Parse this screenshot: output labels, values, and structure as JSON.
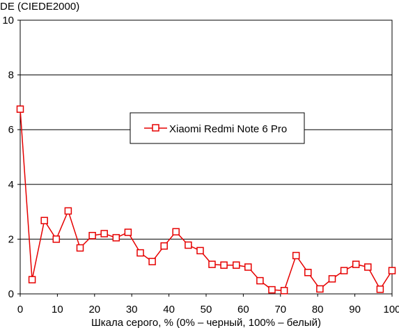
{
  "chart_data": {
    "type": "line",
    "title": "",
    "ylabel": "DE (CIEDE2000)",
    "xlabel": "Шкала серого, % (0% – черный, 100% – белый)",
    "xlim": [
      0,
      100
    ],
    "ylim": [
      0,
      10
    ],
    "x_ticks": [
      0,
      10,
      20,
      30,
      40,
      50,
      60,
      70,
      80,
      90,
      100
    ],
    "y_ticks": [
      0,
      2,
      4,
      6,
      8,
      10
    ],
    "grid": "horizontal",
    "legend_position": "center-right",
    "series": [
      {
        "name": "Xiaomi Redmi Note 6 Pro",
        "color": "#e60000",
        "marker": "open-square",
        "x": [
          0,
          3.2,
          6.5,
          9.7,
          12.9,
          16.1,
          19.4,
          22.6,
          25.8,
          29.0,
          32.3,
          35.5,
          38.7,
          41.9,
          45.2,
          48.4,
          51.6,
          54.8,
          58.1,
          61.3,
          64.5,
          67.7,
          71.0,
          74.2,
          77.4,
          80.6,
          83.9,
          87.1,
          90.3,
          93.5,
          96.8,
          100
        ],
        "y": [
          6.75,
          0.52,
          2.68,
          2.0,
          3.03,
          1.68,
          2.13,
          2.2,
          2.05,
          2.25,
          1.5,
          1.18,
          1.75,
          2.27,
          1.78,
          1.58,
          1.08,
          1.05,
          1.05,
          0.98,
          0.48,
          0.15,
          0.12,
          1.4,
          0.78,
          0.18,
          0.55,
          0.85,
          1.08,
          0.98,
          0.17,
          0.85
        ]
      }
    ]
  }
}
